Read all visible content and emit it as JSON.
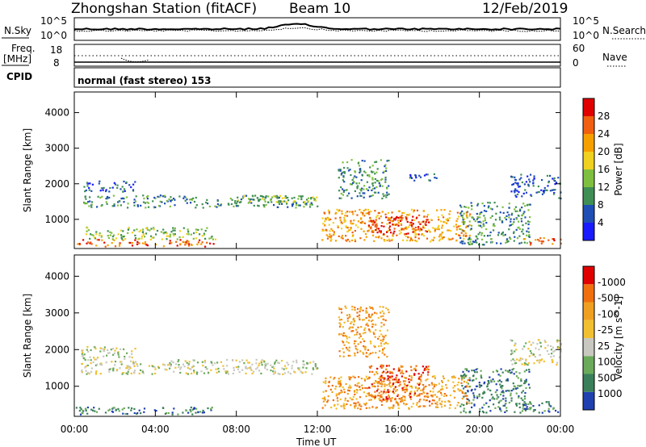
{
  "header": {
    "station": "Zhongshan Station (fitACF)",
    "beam": "Beam 10",
    "date": "12/Feb/2019"
  },
  "panels": {
    "noise": {
      "left_label": "N.Sky",
      "left_ticks": [
        "10^5",
        "10^0"
      ],
      "right_ticks": [
        "10^5",
        "10^0"
      ],
      "right_label": "N.Search"
    },
    "freq": {
      "left_label_1": "Freq.",
      "left_label_2": "[MHz]",
      "left_ticks": [
        "18",
        "8"
      ],
      "right_ticks": [
        "60",
        "0"
      ],
      "right_label": "Nave"
    },
    "cpid": {
      "label": "CPID",
      "text": "normal (fast stereo) 153"
    }
  },
  "chart_data": [
    {
      "type": "heatmap",
      "title": "",
      "xlabel": "",
      "ylabel": "Slant Range [km]",
      "x_ticks": [
        "00:00",
        "04:00",
        "08:00",
        "12:00",
        "16:00",
        "20:00",
        "00:00"
      ],
      "x_range_hours": [
        0,
        24
      ],
      "y_ticks": [
        1000,
        2000,
        3000,
        4000
      ],
      "ylim": [
        180,
        4580
      ],
      "colorbar": {
        "label": "Power [dB]",
        "ticks": [
          "4",
          "8",
          "12",
          "16",
          "20",
          "24",
          "28"
        ],
        "colors": [
          "#1a1aff",
          "#1f4fb4",
          "#3f8f55",
          "#7fbf3f",
          "#f0d020",
          "#f5a000",
          "#f06010",
          "#e00000"
        ]
      },
      "regions": [
        {
          "t": [
            0.0,
            7.0
          ],
          "r": [
            250,
            450
          ],
          "level": 6
        },
        {
          "t": [
            0.5,
            7.0
          ],
          "r": [
            450,
            800
          ],
          "level": 3
        },
        {
          "t": [
            0.3,
            12.0
          ],
          "r": [
            1350,
            1700
          ],
          "level": 2
        },
        {
          "t": [
            0.3,
            3.0
          ],
          "r": [
            1800,
            2100
          ],
          "level": 1
        },
        {
          "t": [
            8.0,
            12.0
          ],
          "r": [
            1500,
            1700
          ],
          "level": 3
        },
        {
          "t": [
            12.2,
            19.5
          ],
          "r": [
            400,
            1300
          ],
          "level": 5
        },
        {
          "t": [
            14.5,
            17.5
          ],
          "r": [
            600,
            1100
          ],
          "level": 7
        },
        {
          "t": [
            13.0,
            15.5
          ],
          "r": [
            1600,
            2700
          ],
          "level": 2
        },
        {
          "t": [
            16.5,
            18.0
          ],
          "r": [
            2100,
            2300
          ],
          "level": 1
        },
        {
          "t": [
            19.0,
            22.5
          ],
          "r": [
            300,
            1500
          ],
          "level": 2
        },
        {
          "t": [
            22.0,
            24.0
          ],
          "r": [
            300,
            500
          ],
          "level": 6
        },
        {
          "t": [
            21.5,
            24.0
          ],
          "r": [
            1600,
            2300
          ],
          "level": 1
        }
      ]
    },
    {
      "type": "heatmap",
      "title": "",
      "xlabel": "Time UT",
      "ylabel": "Slant Range [km]",
      "x_ticks": [
        "00:00",
        "04:00",
        "08:00",
        "12:00",
        "16:00",
        "20:00",
        "00:00"
      ],
      "x_range_hours": [
        0,
        24
      ],
      "y_ticks": [
        1000,
        2000,
        3000,
        4000
      ],
      "ylim": [
        180,
        4580
      ],
      "colorbar": {
        "label": "Velocity [m s^-1]",
        "ticks": [
          "1000",
          "500",
          "100",
          "25",
          "-25",
          "-100",
          "-500",
          "-1000"
        ],
        "colors": [
          "#2040b0",
          "#3a7f5a",
          "#6aaa5a",
          "#c8c8c0",
          "#f0c030",
          "#f0a020",
          "#f07010",
          "#e00000"
        ]
      },
      "regions": [
        {
          "t": [
            0.0,
            7.0
          ],
          "r": [
            250,
            450
          ],
          "level": 1
        },
        {
          "t": [
            0.3,
            12.0
          ],
          "r": [
            1350,
            1750
          ],
          "level": 3
        },
        {
          "t": [
            0.3,
            3.0
          ],
          "r": [
            1750,
            2100
          ],
          "level": 3
        },
        {
          "t": [
            12.2,
            19.5
          ],
          "r": [
            400,
            1300
          ],
          "level": 5
        },
        {
          "t": [
            14.5,
            17.5
          ],
          "r": [
            600,
            1600
          ],
          "level": 6
        },
        {
          "t": [
            13.0,
            15.5
          ],
          "r": [
            1800,
            3200
          ],
          "level": 5
        },
        {
          "t": [
            19.0,
            22.5
          ],
          "r": [
            300,
            1500
          ],
          "level": 1
        },
        {
          "t": [
            21.5,
            24.0
          ],
          "r": [
            1600,
            2300
          ],
          "level": 3
        },
        {
          "t": [
            22.0,
            24.0
          ],
          "r": [
            300,
            600
          ],
          "level": 1
        }
      ]
    }
  ]
}
